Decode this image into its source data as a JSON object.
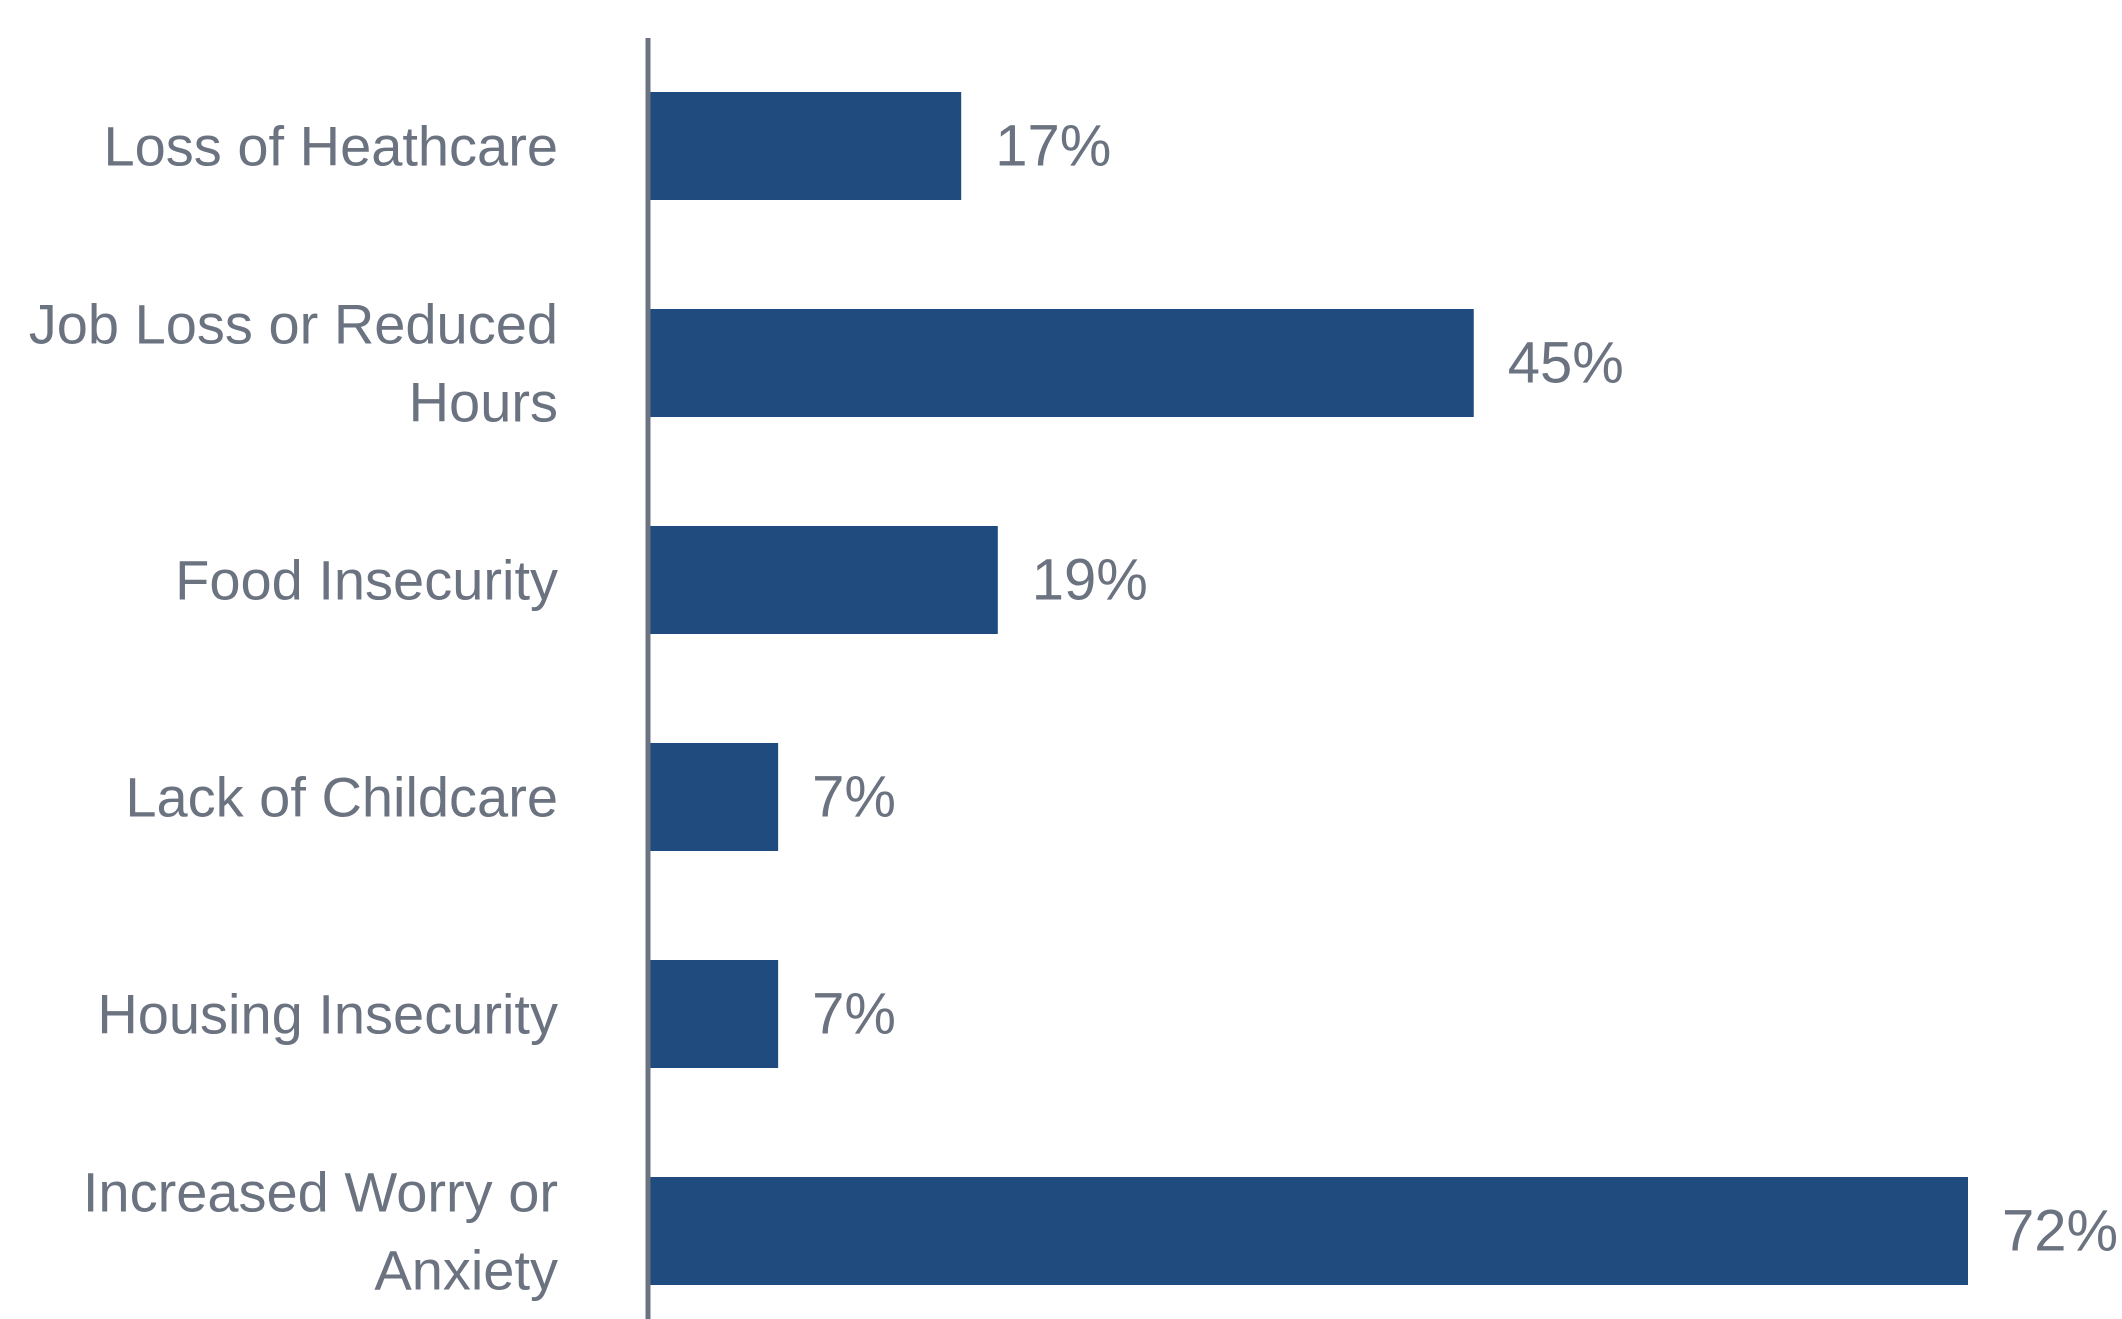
{
  "chart_data": {
    "type": "bar",
    "orientation": "horizontal",
    "title": "",
    "xlabel": "",
    "ylabel": "",
    "categories": [
      "Loss of Heathcare",
      "Job Loss or Reduced Hours",
      "Food Insecurity",
      "Lack of Childcare",
      "Housing Insecurity",
      "Increased Worry or Anxiety"
    ],
    "category_lines": [
      [
        "Loss of Heathcare"
      ],
      [
        "Job Loss or Reduced",
        "Hours"
      ],
      [
        "Food Insecurity"
      ],
      [
        "Lack of Childcare"
      ],
      [
        "Housing Insecurity"
      ],
      [
        "Increased Worry or",
        "Anxiety"
      ]
    ],
    "values": [
      17,
      45,
      19,
      7,
      7,
      72
    ],
    "value_labels": [
      "17%",
      "45%",
      "19%",
      "7%",
      "7%",
      "72%"
    ],
    "xlim": [
      0,
      72
    ],
    "grid": false,
    "legend": "none",
    "colors": {
      "bar": "#1f4b7e",
      "axis": "#6b7280",
      "text": "#6b7280"
    }
  }
}
